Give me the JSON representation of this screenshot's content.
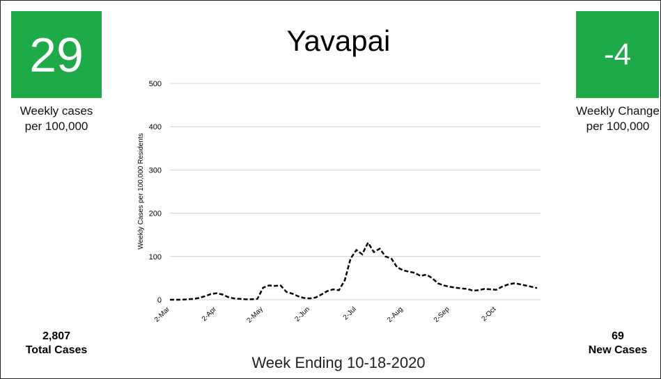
{
  "chart_data": {
    "type": "line",
    "title": "Yavapai",
    "x_label": "Week Ending 10-18-2020",
    "y_label": "Weekly Cases per 100,000 Residents",
    "categories": [
      "2-Mar",
      null,
      null,
      null,
      null,
      null,
      null,
      null,
      "2-Apr",
      null,
      null,
      null,
      null,
      null,
      null,
      null,
      "2-May",
      null,
      null,
      null,
      null,
      null,
      null,
      null,
      "2-Jun",
      null,
      null,
      null,
      null,
      null,
      null,
      null,
      "2-Jul",
      null,
      null,
      null,
      null,
      null,
      null,
      null,
      "2-Aug",
      null,
      null,
      null,
      null,
      null,
      null,
      null,
      "2-Sep",
      null,
      null,
      null,
      null,
      null,
      null,
      null,
      "2-Oct",
      null,
      null,
      null,
      null,
      null,
      null,
      null
    ],
    "values": [
      0,
      0,
      0,
      1,
      2,
      4,
      8,
      13,
      15,
      12,
      6,
      3,
      2,
      1,
      1,
      2,
      28,
      33,
      32,
      33,
      18,
      14,
      8,
      4,
      3,
      5,
      12,
      20,
      24,
      22,
      45,
      95,
      115,
      105,
      132,
      110,
      118,
      100,
      95,
      75,
      68,
      65,
      62,
      55,
      58,
      50,
      38,
      33,
      30,
      28,
      26,
      25,
      21,
      22,
      25,
      24,
      23,
      30,
      35,
      38,
      36,
      33,
      30,
      27
    ],
    "color": "#000000",
    "line_style": "dashed",
    "ylim": [
      0,
      500
    ],
    "yticks": [
      0,
      100,
      200,
      300,
      400,
      500
    ],
    "grid": true
  },
  "left_panel": {
    "value": "29",
    "caption": "Weekly cases per 100,000",
    "total": "2,807",
    "total_label": "Total Cases"
  },
  "right_panel": {
    "value": "-4",
    "caption": "Weekly Change per 100,000",
    "new": "69",
    "new_label": "New Cases"
  }
}
